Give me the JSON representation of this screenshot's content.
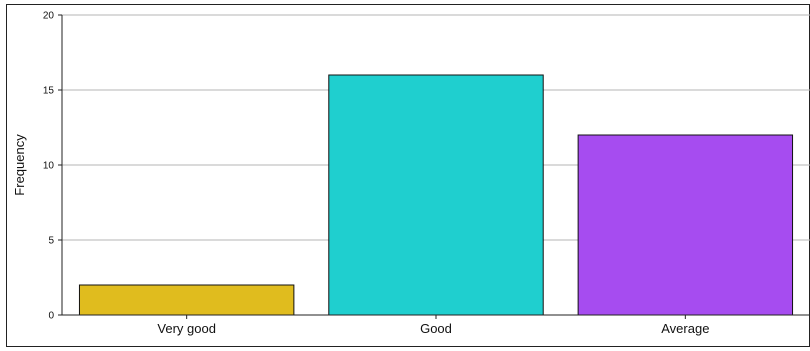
{
  "chart_data": {
    "type": "bar",
    "categories": [
      "Very good",
      "Good",
      "Average"
    ],
    "values": [
      2,
      16,
      12
    ],
    "colors": [
      "#e0bc1e",
      "#1fcfcf",
      "#a64cf0"
    ],
    "title": "",
    "xlabel": "",
    "ylabel": "Frequency",
    "ylim": [
      0,
      20
    ],
    "yticks": [
      0,
      5,
      10,
      15,
      20
    ],
    "grid": true
  }
}
